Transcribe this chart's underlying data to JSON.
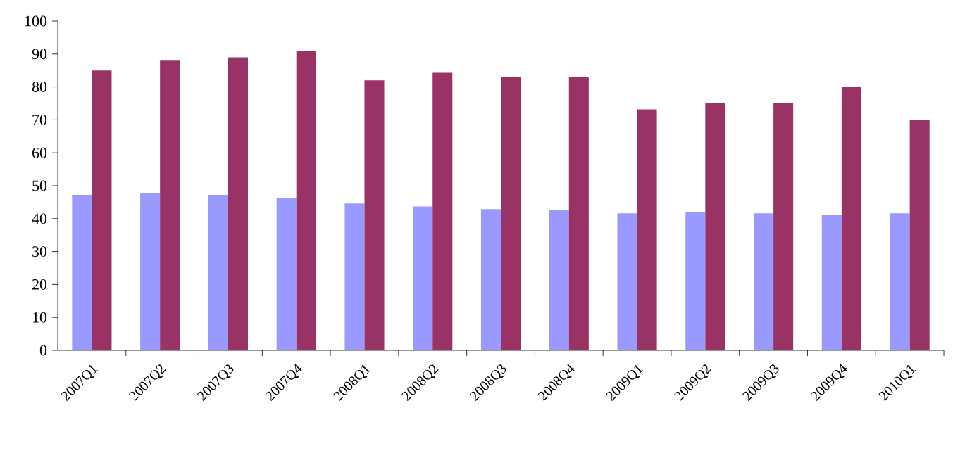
{
  "chart_data": {
    "type": "bar",
    "categories": [
      "2007Q1",
      "2007Q2",
      "2007Q3",
      "2007Q4",
      "2008Q1",
      "2008Q2",
      "2008Q3",
      "2008Q4",
      "2009Q1",
      "2009Q2",
      "2009Q3",
      "2009Q4",
      "2010Q1"
    ],
    "series": [
      {
        "color": "#9999ff",
        "values": [
          47.2,
          47.7,
          47.2,
          46.3,
          44.6,
          43.7,
          42.9,
          42.5,
          41.6,
          42.0,
          41.6,
          41.2,
          41.6
        ]
      },
      {
        "color": "#993366",
        "values": [
          85,
          88,
          89,
          91,
          82,
          84.3,
          83,
          83,
          73.2,
          75,
          75,
          80,
          70
        ]
      }
    ],
    "ylim": [
      0,
      100
    ],
    "yticks": [
      0,
      10,
      20,
      30,
      40,
      50,
      60,
      70,
      80,
      90,
      100
    ],
    "grid": false,
    "legend": false
  }
}
